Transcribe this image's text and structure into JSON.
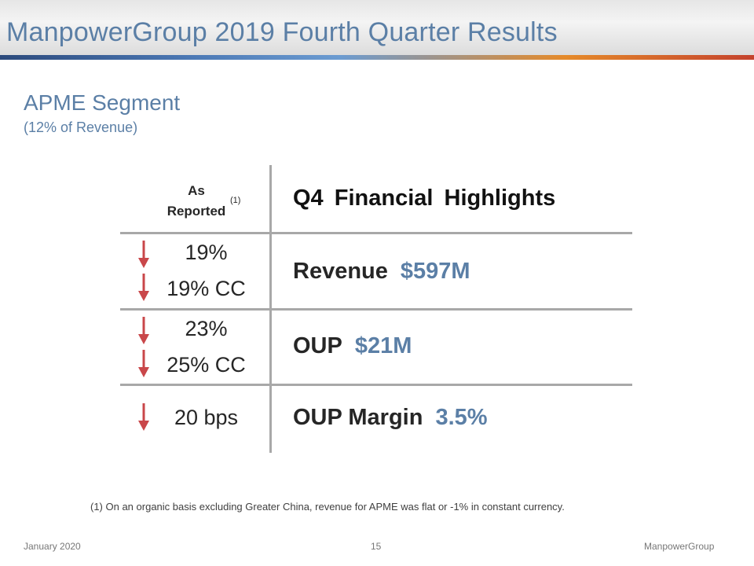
{
  "header": {
    "title": "ManpowerGroup 2019 Fourth Quarter Results"
  },
  "segment": {
    "title": "APME Segment",
    "subtitle": "(12% of Revenue)"
  },
  "table": {
    "left_header_line1": "As",
    "left_header_line2": "Reported",
    "left_header_sup": "(1)",
    "right_header": "Q4 Financial Highlights",
    "rows": [
      {
        "changes": [
          "19%",
          "19% CC"
        ],
        "metric": "Revenue",
        "value": "$597M"
      },
      {
        "changes": [
          "23%",
          "25% CC"
        ],
        "metric": "OUP",
        "value": "$21M"
      },
      {
        "changes": [
          "20 bps"
        ],
        "metric": "OUP Margin",
        "value": "3.5%"
      }
    ]
  },
  "footnote": "(1)  On an organic basis excluding Greater China, revenue for APME was flat or -1% in constant currency.",
  "footer": {
    "date": "January 2020",
    "page": "15",
    "brand": "ManpowerGroup"
  },
  "colors": {
    "accent": "#5b7fa6",
    "arrow": "#c9474a",
    "rule": "#a8a8a8"
  },
  "icons": {
    "change_direction": "down-arrow-icon"
  }
}
